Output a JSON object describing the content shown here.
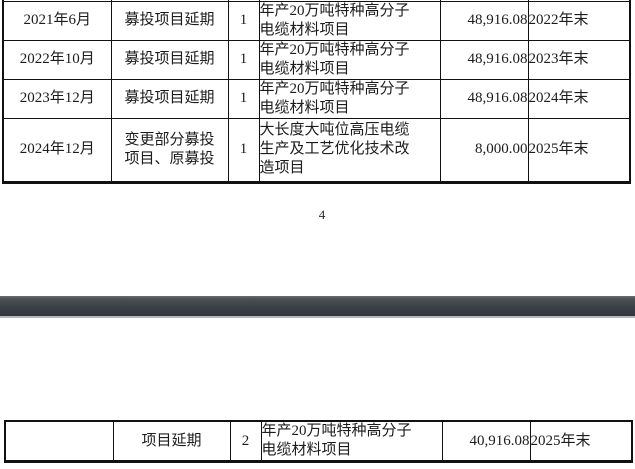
{
  "document": {
    "page_number": "4"
  },
  "colors": {
    "text": "#1c1c1c",
    "table_border": "#111111",
    "separator_top": "#6b6e71",
    "separator_upper": "#4b5054",
    "separator_mid": "#3b4145",
    "separator_bottom": "#32383d",
    "separator_edge": "#b5b8ba"
  },
  "row_keys": [
    "date",
    "change_type",
    "count",
    "project",
    "amount",
    "deadline"
  ],
  "top_table": {
    "rows": [
      {
        "date": "2021年6月",
        "change_type": "募投项目延期",
        "count": "1",
        "project": "年产20万吨特种高分子\n电缆材料项目",
        "amount": "48,916.08",
        "deadline": "2022年末"
      },
      {
        "date": "2022年10月",
        "change_type": "募投项目延期",
        "count": "1",
        "project": "年产20万吨特种高分子\n电缆材料项目",
        "amount": "48,916.08",
        "deadline": "2023年末"
      },
      {
        "date": "2023年12月",
        "change_type": "募投项目延期",
        "count": "1",
        "project": "年产20万吨特种高分子\n电缆材料项目",
        "amount": "48,916.08",
        "deadline": "2024年末"
      },
      {
        "date": "2024年12月",
        "change_type": "变更部分募投\n项目、原募投",
        "count": "1",
        "project": "大长度大吨位高压电缆\n生产及工艺优化技术改\n造项目",
        "amount": "8,000.00",
        "deadline": "2025年末"
      }
    ]
  },
  "bottom_table": {
    "rows": [
      {
        "date": "",
        "change_type": "项目延期",
        "count": "2",
        "project": "年产20万吨特种高分子\n电缆材料项目",
        "amount": "40,916.08",
        "deadline": "2025年末"
      }
    ]
  }
}
